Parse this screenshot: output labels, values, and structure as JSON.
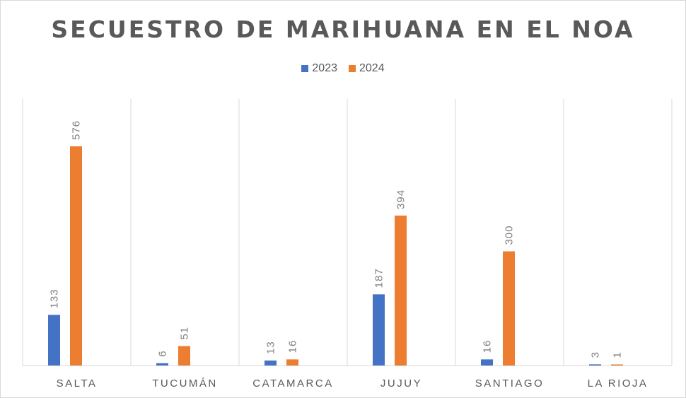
{
  "chart_data": {
    "type": "bar",
    "title": "SECUESTRO DE MARIHUANA EN EL NOA",
    "categories": [
      "SALTA",
      "TUCUMÁN",
      "CATAMARCA",
      "JUJUY",
      "SANTIAGO",
      "LA RIOJA"
    ],
    "series": [
      {
        "name": "2023",
        "color": "#4472C4",
        "values": [
          133,
          6,
          13,
          187,
          16,
          3
        ]
      },
      {
        "name": "2024",
        "color": "#ED7D31",
        "values": [
          576,
          51,
          16,
          394,
          300,
          1
        ]
      }
    ],
    "ylim": [
      0,
      576
    ],
    "data_labels": true,
    "legend": "top",
    "grid": "vertical category separators"
  }
}
